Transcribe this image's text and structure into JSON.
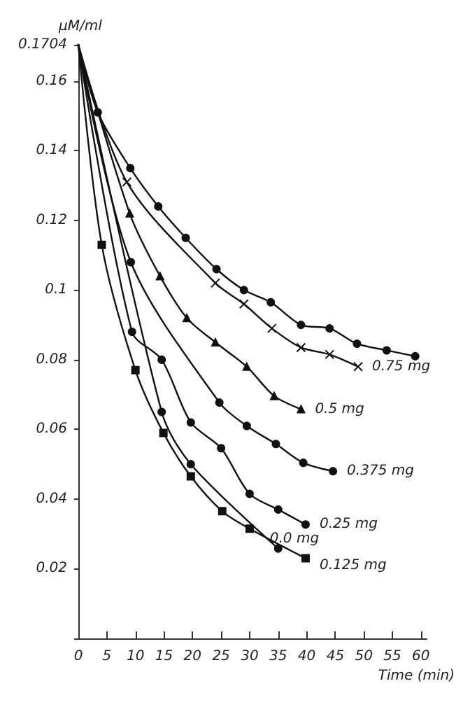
{
  "chart_data": {
    "type": "line",
    "xlabel": "Time (min)",
    "ylabel": "μM/ml",
    "xlim": [
      0,
      61
    ],
    "ylim": [
      0,
      0.1704
    ],
    "xticks": [
      0,
      5,
      10,
      15,
      20,
      25,
      30,
      35,
      40,
      45,
      50,
      55,
      60
    ],
    "yticks": [
      {
        "value": 0,
        "label": null
      },
      0.02,
      0.04,
      0.06,
      0.08,
      0.1,
      0.12,
      0.14,
      0.16,
      {
        "value": 0.1704,
        "label": "0.1704"
      }
    ],
    "grid": false,
    "legend": false,
    "line_style": "solid",
    "series": [
      {
        "color": "#111111",
        "marker": "circle",
        "x": [
          0,
          3.4,
          9.1,
          14,
          18.8,
          24.2,
          29,
          33.7,
          39,
          44,
          48.8,
          54,
          59
        ],
        "values": [
          0.1704,
          0.151,
          0.135,
          0.124,
          0.115,
          0.106,
          0.1,
          0.0965,
          0.09,
          0.089,
          0.0846,
          0.0827,
          0.081
        ]
      },
      {
        "name": "0.75 mg",
        "color": "#111111",
        "marker": "cross",
        "x": [
          0,
          8.5,
          24,
          29,
          33.9,
          39,
          44,
          49
        ],
        "values": [
          0.1704,
          0.131,
          0.102,
          0.096,
          0.089,
          0.0835,
          0.0815,
          0.078
        ]
      },
      {
        "name": "0.5 mg",
        "color": "#111111",
        "marker": "triangle",
        "x": [
          0,
          9,
          14.3,
          19,
          24,
          29.5,
          34.3,
          39
        ],
        "values": [
          0.1704,
          0.122,
          0.104,
          0.092,
          0.085,
          0.078,
          0.0696,
          0.0658
        ]
      },
      {
        "name": "0.375 mg",
        "color": "#111111",
        "marker": "circle",
        "x": [
          0,
          9.2,
          24.7,
          29.5,
          34.6,
          39.4,
          44.6
        ],
        "values": [
          0.1704,
          0.108,
          0.0677,
          0.061,
          0.0558,
          0.0504,
          0.048
        ]
      },
      {
        "name": "0.25 mg",
        "color": "#111111",
        "marker": "circle",
        "x": [
          0,
          9.4,
          14.6,
          19.7,
          25,
          30,
          35,
          39.8
        ],
        "values": [
          0.1704,
          0.088,
          0.08,
          0.062,
          0.0546,
          0.0415,
          0.037,
          0.0327
        ]
      },
      {
        "name": "0.0 mg",
        "color": "#111111",
        "marker": "circle",
        "x": [
          0,
          14.6,
          19.7,
          25,
          30.4,
          35
        ],
        "values": [
          0.1704,
          0.065,
          0.05,
          null,
          null,
          0.0258
        ]
      },
      {
        "name": "0.125 mg",
        "color": "#111111",
        "marker": "square",
        "x": [
          0,
          4.1,
          10,
          14.9,
          19.7,
          25.2,
          30,
          39.8
        ],
        "values": [
          0.1704,
          0.113,
          0.077,
          0.059,
          0.0465,
          0.0365,
          0.0315,
          0.023
        ]
      }
    ]
  }
}
